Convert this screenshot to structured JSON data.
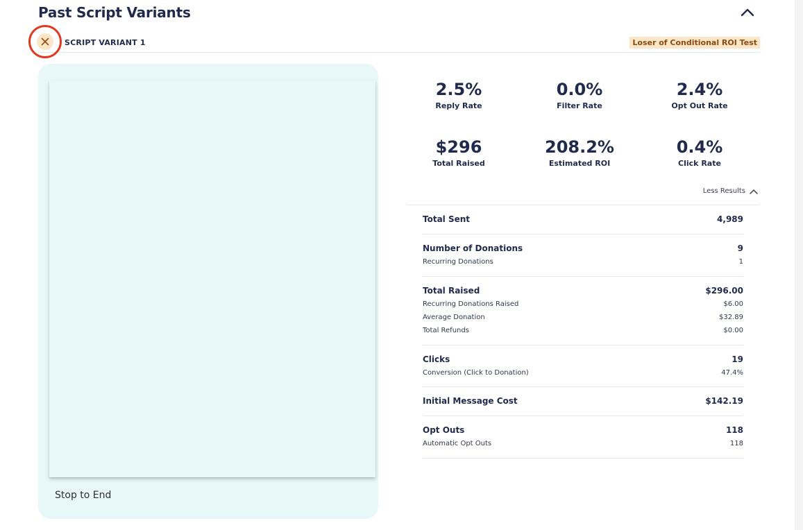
{
  "section": {
    "title": "Past Script Variants"
  },
  "variant": {
    "label": "SCRIPT VARIANT 1",
    "badge": "Loser of Conditional ROI Test"
  },
  "preview": {
    "footer": "Stop to End"
  },
  "stats": [
    {
      "value": "2.5%",
      "label": "Reply Rate"
    },
    {
      "value": "0.0%",
      "label": "Filter Rate"
    },
    {
      "value": "2.4%",
      "label": "Opt Out Rate"
    },
    {
      "value": "$296",
      "label": "Total Raised"
    },
    {
      "value": "208.2%",
      "label": "Estimated ROI"
    },
    {
      "value": "0.4%",
      "label": "Click Rate"
    }
  ],
  "less_results_label": "Less Results",
  "metrics": [
    {
      "main": {
        "label": "Total Sent",
        "value": "4,989"
      },
      "subs": []
    },
    {
      "main": {
        "label": "Number of Donations",
        "value": "9"
      },
      "subs": [
        {
          "label": "Recurring Donations",
          "value": "1"
        }
      ]
    },
    {
      "main": {
        "label": "Total Raised",
        "value": "$296.00"
      },
      "subs": [
        {
          "label": "Recurring Donations Raised",
          "value": "$6.00"
        },
        {
          "label": "Average Donation",
          "value": "$32.89"
        },
        {
          "label": "Total Refunds",
          "value": "$0.00"
        }
      ]
    },
    {
      "main": {
        "label": "Clicks",
        "value": "19"
      },
      "subs": [
        {
          "label": "Conversion (Click to Donation)",
          "value": "47.4%"
        }
      ]
    },
    {
      "main": {
        "label": "Initial Message Cost",
        "value": "$142.19"
      },
      "subs": []
    },
    {
      "main": {
        "label": "Opt Outs",
        "value": "118"
      },
      "subs": [
        {
          "label": "Automatic Opt Outs",
          "value": "118"
        }
      ]
    }
  ],
  "colors": {
    "accent_navy": "#1f2a4d",
    "badge_bg": "#fbe7c8",
    "badge_text": "#8a4b12",
    "preview_bg": "#e8f8f8",
    "highlight_ring": "#e03a22"
  },
  "icons": {
    "collapse": "chevron-up-icon",
    "close": "close-icon",
    "less_results": "chevron-up-icon"
  }
}
